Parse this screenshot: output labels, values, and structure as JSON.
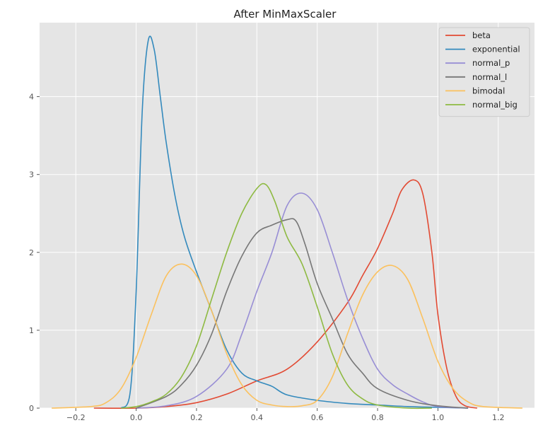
{
  "chart_data": {
    "type": "line",
    "title": "After MinMaxScaler",
    "xlabel": "",
    "ylabel": "",
    "xlim": [
      -0.32,
      1.32
    ],
    "ylim": [
      0,
      4.95
    ],
    "xticks": [
      -0.2,
      0.0,
      0.2,
      0.4,
      0.6,
      0.8,
      1.0,
      1.2
    ],
    "xtick_labels": [
      "−0.2",
      "0.0",
      "0.2",
      "0.4",
      "0.6",
      "0.8",
      "1.0",
      "1.2"
    ],
    "yticks": [
      0,
      1,
      2,
      3,
      4
    ],
    "ytick_labels": [
      "0",
      "1",
      "2",
      "3",
      "4"
    ],
    "grid": true,
    "legend_position": "top-right",
    "series": [
      {
        "name": "beta",
        "color": "#E24A33",
        "points": [
          [
            -0.14,
            0.0
          ],
          [
            0.0,
            0.0
          ],
          [
            0.1,
            0.02
          ],
          [
            0.2,
            0.07
          ],
          [
            0.3,
            0.18
          ],
          [
            0.4,
            0.35
          ],
          [
            0.5,
            0.5
          ],
          [
            0.6,
            0.85
          ],
          [
            0.7,
            1.35
          ],
          [
            0.75,
            1.7
          ],
          [
            0.8,
            2.05
          ],
          [
            0.85,
            2.5
          ],
          [
            0.88,
            2.8
          ],
          [
            0.92,
            2.93
          ],
          [
            0.95,
            2.75
          ],
          [
            0.98,
            2.0
          ],
          [
            1.0,
            1.2
          ],
          [
            1.03,
            0.5
          ],
          [
            1.06,
            0.15
          ],
          [
            1.09,
            0.03
          ],
          [
            1.13,
            0.0
          ]
        ]
      },
      {
        "name": "exponential",
        "color": "#348ABD",
        "points": [
          [
            -0.05,
            0.0
          ],
          [
            -0.02,
            0.2
          ],
          [
            0.0,
            1.5
          ],
          [
            0.02,
            3.8
          ],
          [
            0.04,
            4.72
          ],
          [
            0.06,
            4.6
          ],
          [
            0.08,
            4.0
          ],
          [
            0.1,
            3.4
          ],
          [
            0.13,
            2.7
          ],
          [
            0.16,
            2.2
          ],
          [
            0.2,
            1.75
          ],
          [
            0.25,
            1.25
          ],
          [
            0.3,
            0.75
          ],
          [
            0.35,
            0.45
          ],
          [
            0.4,
            0.35
          ],
          [
            0.45,
            0.28
          ],
          [
            0.5,
            0.17
          ],
          [
            0.6,
            0.1
          ],
          [
            0.7,
            0.06
          ],
          [
            0.8,
            0.04
          ],
          [
            0.9,
            0.02
          ],
          [
            1.0,
            0.01
          ],
          [
            1.1,
            0.0
          ]
        ]
      },
      {
        "name": "normal_p",
        "color": "#988ED5",
        "points": [
          [
            0.0,
            0.0
          ],
          [
            0.1,
            0.03
          ],
          [
            0.2,
            0.15
          ],
          [
            0.3,
            0.5
          ],
          [
            0.35,
            0.95
          ],
          [
            0.4,
            1.5
          ],
          [
            0.45,
            2.0
          ],
          [
            0.5,
            2.6
          ],
          [
            0.55,
            2.76
          ],
          [
            0.6,
            2.55
          ],
          [
            0.65,
            2.0
          ],
          [
            0.7,
            1.4
          ],
          [
            0.75,
            0.9
          ],
          [
            0.8,
            0.5
          ],
          [
            0.85,
            0.3
          ],
          [
            0.9,
            0.18
          ],
          [
            0.95,
            0.08
          ],
          [
            1.0,
            0.02
          ],
          [
            1.1,
            0.0
          ]
        ]
      },
      {
        "name": "normal_l",
        "color": "#777777",
        "points": [
          [
            0.0,
            0.0
          ],
          [
            0.1,
            0.15
          ],
          [
            0.15,
            0.3
          ],
          [
            0.2,
            0.55
          ],
          [
            0.25,
            0.95
          ],
          [
            0.3,
            1.5
          ],
          [
            0.35,
            1.95
          ],
          [
            0.4,
            2.25
          ],
          [
            0.45,
            2.35
          ],
          [
            0.5,
            2.42
          ],
          [
            0.53,
            2.4
          ],
          [
            0.56,
            2.1
          ],
          [
            0.6,
            1.6
          ],
          [
            0.65,
            1.15
          ],
          [
            0.7,
            0.7
          ],
          [
            0.75,
            0.45
          ],
          [
            0.8,
            0.25
          ],
          [
            0.9,
            0.1
          ],
          [
            1.0,
            0.03
          ],
          [
            1.1,
            0.0
          ]
        ]
      },
      {
        "name": "bimodal",
        "color": "#FBC15E",
        "points": [
          [
            -0.28,
            0.0
          ],
          [
            -0.15,
            0.02
          ],
          [
            -0.1,
            0.07
          ],
          [
            -0.05,
            0.25
          ],
          [
            0.0,
            0.65
          ],
          [
            0.05,
            1.2
          ],
          [
            0.1,
            1.7
          ],
          [
            0.15,
            1.85
          ],
          [
            0.2,
            1.7
          ],
          [
            0.25,
            1.25
          ],
          [
            0.3,
            0.7
          ],
          [
            0.35,
            0.3
          ],
          [
            0.4,
            0.1
          ],
          [
            0.45,
            0.04
          ],
          [
            0.5,
            0.02
          ],
          [
            0.55,
            0.03
          ],
          [
            0.6,
            0.1
          ],
          [
            0.65,
            0.4
          ],
          [
            0.7,
            0.95
          ],
          [
            0.75,
            1.45
          ],
          [
            0.8,
            1.75
          ],
          [
            0.85,
            1.83
          ],
          [
            0.9,
            1.65
          ],
          [
            0.95,
            1.15
          ],
          [
            1.0,
            0.6
          ],
          [
            1.05,
            0.25
          ],
          [
            1.1,
            0.08
          ],
          [
            1.15,
            0.02
          ],
          [
            1.28,
            0.0
          ]
        ]
      },
      {
        "name": "normal_big",
        "color": "#8EBA42",
        "points": [
          [
            -0.05,
            0.0
          ],
          [
            0.0,
            0.02
          ],
          [
            0.05,
            0.08
          ],
          [
            0.1,
            0.18
          ],
          [
            0.15,
            0.4
          ],
          [
            0.2,
            0.8
          ],
          [
            0.25,
            1.4
          ],
          [
            0.3,
            2.0
          ],
          [
            0.35,
            2.5
          ],
          [
            0.4,
            2.82
          ],
          [
            0.43,
            2.87
          ],
          [
            0.46,
            2.65
          ],
          [
            0.5,
            2.2
          ],
          [
            0.55,
            1.85
          ],
          [
            0.6,
            1.3
          ],
          [
            0.65,
            0.7
          ],
          [
            0.7,
            0.3
          ],
          [
            0.75,
            0.12
          ],
          [
            0.8,
            0.04
          ],
          [
            0.9,
            0.0
          ],
          [
            0.98,
            0.0
          ]
        ]
      }
    ]
  }
}
